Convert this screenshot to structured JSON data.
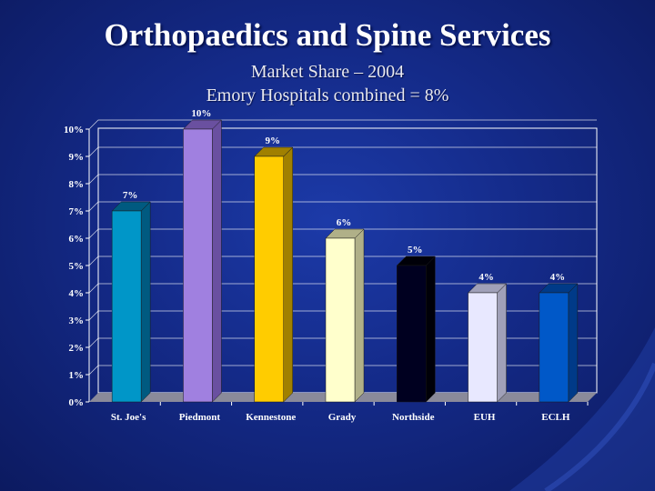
{
  "slide": {
    "title": "Orthopaedics and Spine Services",
    "subtitle_line1": "Market Share – 2004",
    "subtitle_line2": "Emory Hospitals combined = 8%"
  },
  "colors": {
    "plot_border": "#ffffff",
    "gridline": "#ffffff",
    "tick_text": "#ffffff",
    "floor": "#8a8a9a"
  },
  "chart_data": {
    "type": "bar",
    "categories": [
      "St. Joe's",
      "Piedmont",
      "Kennestone",
      "Grady",
      "Northside",
      "EUH",
      "ECLH"
    ],
    "values": [
      7,
      10,
      9,
      6,
      5,
      4,
      4
    ],
    "data_labels": [
      "7%",
      "10%",
      "9%",
      "6%",
      "5%",
      "4%",
      "4%"
    ],
    "bar_colors": [
      "#0096c8",
      "#a080e0",
      "#ffcc00",
      "#ffffcc",
      "#000020",
      "#e8e8ff",
      "#0058c8"
    ],
    "side_colors": [
      "#005a80",
      "#6a50a0",
      "#a08000",
      "#b0b088",
      "#000008",
      "#a0a0b8",
      "#003a88"
    ],
    "yticks": [
      "0%",
      "1%",
      "2%",
      "3%",
      "4%",
      "5%",
      "6%",
      "7%",
      "8%",
      "9%",
      "10%"
    ],
    "ylim": [
      0,
      10
    ],
    "grid": true,
    "xlabel": "",
    "ylabel": ""
  }
}
